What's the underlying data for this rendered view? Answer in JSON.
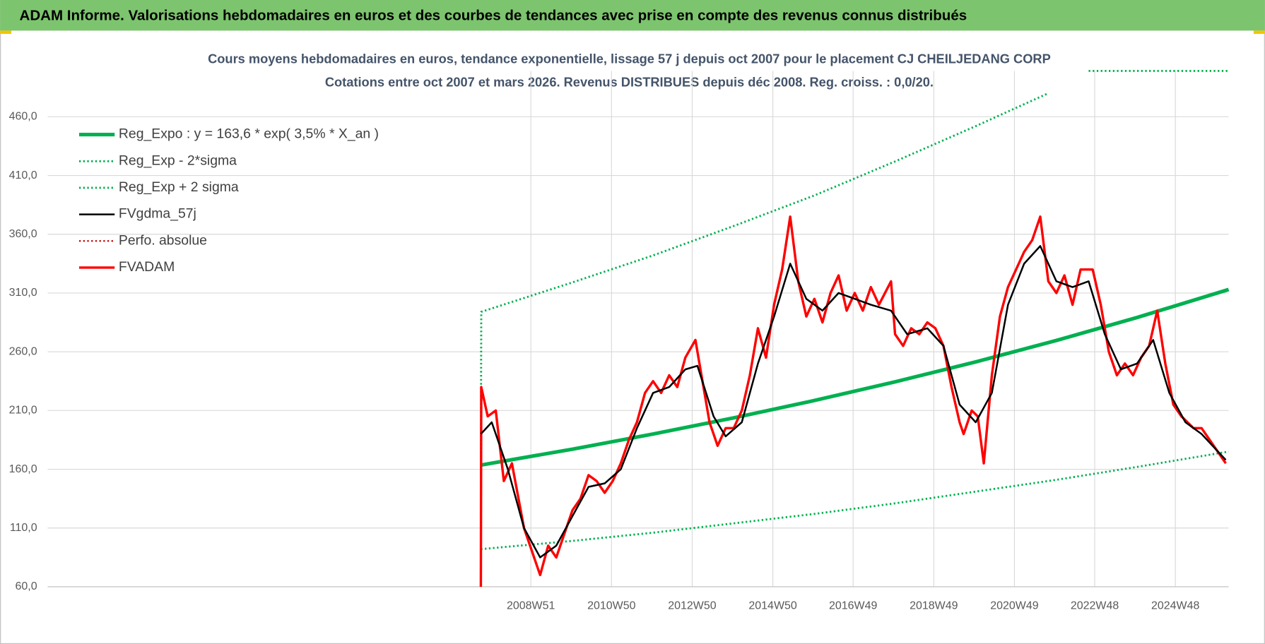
{
  "header": {
    "title": "ADAM Informe. Valorisations hebdomadaires en euros et des courbes de tendances avec prise en compte des revenus connus distribués"
  },
  "chart_data": {
    "type": "line",
    "title": "Cours moyens hebdomadaires en euros, tendance exponentielle, lissage 57 j depuis oct 2007 pour le placement CJ CHEILJEDANG CORP",
    "subtitle": "Cotations entre oct 2007 et mars 2026.  Revenus DISTRIBUES depuis déc 2008. Reg. croiss. : 0,0/20.",
    "xlim": [
      1996.99,
      2026.27
    ],
    "xticks": [
      {
        "value": 2008.97,
        "label": "2008W51"
      },
      {
        "value": 2010.97,
        "label": "2010W50"
      },
      {
        "value": 2012.97,
        "label": "2012W50"
      },
      {
        "value": 2014.97,
        "label": "2014W50"
      },
      {
        "value": 2016.96,
        "label": "2016W49"
      },
      {
        "value": 2018.96,
        "label": "2018W49"
      },
      {
        "value": 2020.96,
        "label": "2020W49"
      },
      {
        "value": 2022.95,
        "label": "2022W48"
      },
      {
        "value": 2024.95,
        "label": "2024W48"
      }
    ],
    "ylim": [
      60,
      499
    ],
    "yticks": [
      {
        "value": 60,
        "label": "60,0"
      },
      {
        "value": 110,
        "label": "110,0"
      },
      {
        "value": 160,
        "label": "160,0"
      },
      {
        "value": 210,
        "label": "210,0"
      },
      {
        "value": 260,
        "label": "260,0"
      },
      {
        "value": 310,
        "label": "310,0"
      },
      {
        "value": 360,
        "label": "360,0"
      },
      {
        "value": 410,
        "label": "410,0"
      },
      {
        "value": 460,
        "label": "460,0"
      }
    ],
    "grid": true,
    "legend": "top-left",
    "series": [
      {
        "name": "Reg_Expo : y = 163,6 * exp( 3,5% *  X_an )",
        "color": "#00b050",
        "dash": false,
        "x": [
          2007.73,
          2010,
          2012,
          2014,
          2016,
          2018,
          2020,
          2022,
          2024,
          2026.27
        ],
        "values": [
          163.6,
          177.1,
          190.0,
          203.8,
          218.5,
          234.4,
          251.4,
          269.6,
          289.2,
          313.0
        ]
      },
      {
        "name": "Reg_Exp - 2*sigma",
        "color": "#00b050",
        "dash": true,
        "x": [
          2007.73,
          2010,
          2012,
          2014,
          2016,
          2018,
          2020,
          2022,
          2024,
          2026.27
        ],
        "values": [
          92,
          99,
          106,
          114,
          122,
          131,
          141,
          151,
          162,
          175
        ]
      },
      {
        "name": "Reg_Exp + 2 sigma",
        "color": "#00b050",
        "dash": true,
        "x": [
          2007.73,
          2007.74,
          2010,
          2012,
          2014,
          2016,
          2018,
          2020,
          2021.8,
          2022.5,
          2022.8,
          2026.27
        ],
        "values": [
          160,
          294,
          319,
          342,
          367,
          393,
          422,
          452,
          480,
          null,
          499,
          499
        ]
      },
      {
        "name": "FVgdma_57j",
        "color": "#000000",
        "dash": false,
        "x": [
          2007.73,
          2008.0,
          2008.4,
          2008.8,
          2009.2,
          2009.6,
          2010.0,
          2010.4,
          2010.8,
          2011.2,
          2011.6,
          2012.0,
          2012.4,
          2012.8,
          2013.1,
          2013.5,
          2013.8,
          2014.2,
          2014.6,
          2015.0,
          2015.4,
          2015.8,
          2016.2,
          2016.6,
          2017.0,
          2017.4,
          2017.9,
          2018.3,
          2018.8,
          2019.2,
          2019.6,
          2020.0,
          2020.4,
          2020.8,
          2021.2,
          2021.6,
          2022.0,
          2022.4,
          2022.8,
          2023.2,
          2023.6,
          2024.0,
          2024.4,
          2024.8,
          2025.2,
          2025.6,
          2026.2
        ],
        "values": [
          190,
          200,
          160,
          110,
          85,
          95,
          120,
          145,
          148,
          160,
          195,
          225,
          230,
          245,
          248,
          205,
          188,
          200,
          250,
          290,
          335,
          305,
          295,
          310,
          305,
          300,
          295,
          275,
          280,
          265,
          215,
          200,
          225,
          300,
          335,
          350,
          320,
          315,
          320,
          275,
          245,
          250,
          270,
          225,
          200,
          190,
          168
        ]
      },
      {
        "name": "Perfo. absolue",
        "color": "#c00000",
        "dash": true
      },
      {
        "name": "FVADAM",
        "color": "#ff0000",
        "dash": false,
        "x": [
          2007.73,
          2007.74,
          2007.9,
          2008.1,
          2008.3,
          2008.5,
          2008.8,
          2009.0,
          2009.2,
          2009.4,
          2009.6,
          2009.8,
          2010.0,
          2010.2,
          2010.4,
          2010.6,
          2010.8,
          2011.0,
          2011.2,
          2011.4,
          2011.6,
          2011.8,
          2012.0,
          2012.2,
          2012.4,
          2012.6,
          2012.8,
          2013.05,
          2013.2,
          2013.4,
          2013.6,
          2013.8,
          2014.0,
          2014.2,
          2014.4,
          2014.6,
          2014.8,
          2015.0,
          2015.2,
          2015.4,
          2015.6,
          2015.8,
          2016.0,
          2016.2,
          2016.4,
          2016.6,
          2016.8,
          2017.0,
          2017.2,
          2017.4,
          2017.6,
          2017.9,
          2018.0,
          2018.2,
          2018.4,
          2018.6,
          2018.8,
          2019.0,
          2019.2,
          2019.4,
          2019.6,
          2019.7,
          2019.9,
          2020.05,
          2020.2,
          2020.4,
          2020.6,
          2020.8,
          2021.0,
          2021.2,
          2021.4,
          2021.6,
          2021.8,
          2022.0,
          2022.2,
          2022.4,
          2022.6,
          2022.9,
          2023.1,
          2023.3,
          2023.5,
          2023.7,
          2023.9,
          2024.1,
          2024.3,
          2024.5,
          2024.7,
          2024.9,
          2025.1,
          2025.4,
          2025.6,
          2025.8,
          2026.0,
          2026.2
        ],
        "values": [
          60,
          230,
          205,
          210,
          150,
          165,
          110,
          90,
          70,
          95,
          85,
          105,
          125,
          135,
          155,
          150,
          140,
          150,
          165,
          185,
          200,
          225,
          235,
          225,
          240,
          230,
          255,
          270,
          240,
          200,
          180,
          195,
          195,
          210,
          240,
          280,
          255,
          300,
          330,
          375,
          320,
          290,
          305,
          285,
          310,
          325,
          295,
          310,
          295,
          315,
          300,
          320,
          275,
          265,
          280,
          275,
          285,
          280,
          265,
          230,
          200,
          190,
          210,
          205,
          165,
          240,
          290,
          315,
          330,
          345,
          355,
          375,
          320,
          310,
          325,
          300,
          330,
          330,
          300,
          260,
          240,
          250,
          240,
          255,
          265,
          295,
          250,
          215,
          205,
          195,
          195,
          185,
          175,
          165
        ]
      }
    ]
  }
}
